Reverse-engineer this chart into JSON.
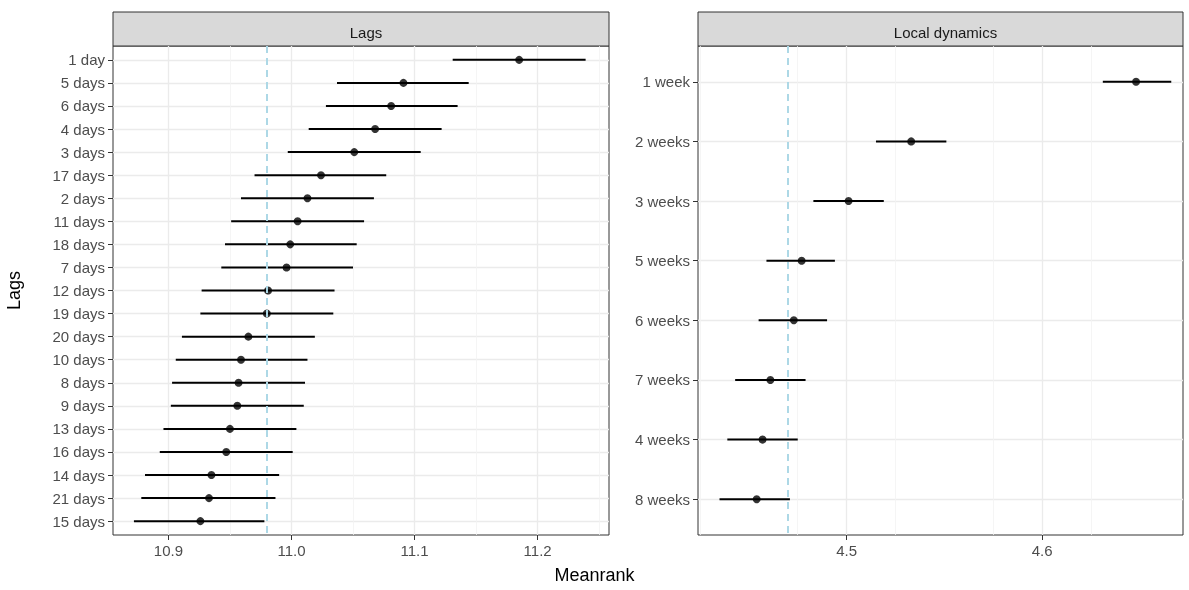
{
  "chart_data": [
    {
      "type": "scatter",
      "title": "Lags",
      "ylabel": "Lags",
      "xlabel": "Meanrank",
      "orientation": "horizontal",
      "categories": [
        "1 day",
        "5 days",
        "6 days",
        "4 days",
        "3 days",
        "17 days",
        "2 days",
        "11 days",
        "18 days",
        "7 days",
        "12 days",
        "19 days",
        "20 days",
        "10 days",
        "8 days",
        "9 days",
        "13 days",
        "16 days",
        "14 days",
        "21 days",
        "15 days"
      ],
      "series": [
        {
          "color": "#000000",
          "values": [
            11.185,
            11.091,
            11.081,
            11.068,
            11.051,
            11.024,
            11.013,
            11.005,
            10.999,
            10.996,
            10.981,
            10.98,
            10.965,
            10.959,
            10.957,
            10.956,
            10.95,
            10.947,
            10.935,
            10.933,
            10.926
          ],
          "errors": [
            [
              11.131,
              11.239
            ],
            [
              11.037,
              11.144
            ],
            [
              11.028,
              11.135
            ],
            [
              11.014,
              11.122
            ],
            [
              10.997,
              11.105
            ],
            [
              10.97,
              11.077
            ],
            [
              10.959,
              11.067
            ],
            [
              10.951,
              11.059
            ],
            [
              10.946,
              11.053
            ],
            [
              10.943,
              11.05
            ],
            [
              10.927,
              11.035
            ],
            [
              10.926,
              11.034
            ],
            [
              10.911,
              11.019
            ],
            [
              10.906,
              11.013
            ],
            [
              10.903,
              11.011
            ],
            [
              10.902,
              11.01
            ],
            [
              10.896,
              11.004
            ],
            [
              10.893,
              11.001
            ],
            [
              10.881,
              10.99
            ],
            [
              10.878,
              10.987
            ],
            [
              10.872,
              10.978
            ]
          ]
        }
      ],
      "xlim": [
        10.855,
        11.258
      ],
      "xticks": [
        10.9,
        {
          "value": 11,
          "label": "11.0"
        },
        11.1,
        11.2
      ],
      "grid": true,
      "marker": "circle",
      "ref_lines": [
        {
          "axis": "x",
          "value": 10.979,
          "color": "#add8e6",
          "line_style": "dashed"
        }
      ]
    },
    {
      "type": "scatter",
      "title": "Local dynamics",
      "orientation": "horizontal",
      "categories": [
        "1 week",
        "2 weeks",
        "3 weeks",
        "5 weeks",
        "6 weeks",
        "7 weeks",
        "4 weeks",
        "8 weeks"
      ],
      "series": [
        {
          "color": "#000000",
          "values": [
            4.648,
            4.533,
            4.501,
            4.477,
            4.473,
            4.461,
            4.457,
            4.454
          ],
          "errors": [
            [
              4.631,
              4.666
            ],
            [
              4.515,
              4.551
            ],
            [
              4.483,
              4.519
            ],
            [
              4.459,
              4.494
            ],
            [
              4.455,
              4.49
            ],
            [
              4.443,
              4.479
            ],
            [
              4.439,
              4.475
            ],
            [
              4.435,
              4.471
            ]
          ]
        }
      ],
      "xlim": [
        4.424,
        4.672
      ],
      "xticks": [
        4.5,
        4.6
      ],
      "grid": true,
      "marker": "circle",
      "ref_lines": [
        {
          "axis": "x",
          "value": 4.471,
          "color": "#add8e6",
          "line_style": "dashed"
        }
      ]
    }
  ]
}
